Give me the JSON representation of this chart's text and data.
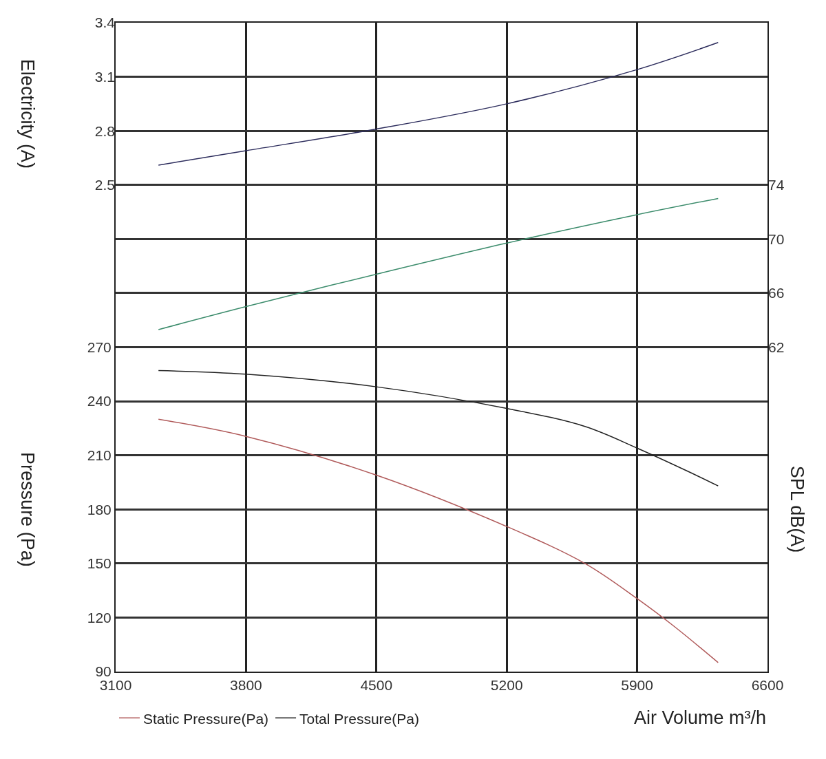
{
  "chart_data": {
    "type": "line",
    "xlabel": "Air Volume m³/h",
    "ylabel": "Pressure (Pa)",
    "y2label": "SPL dB(A)",
    "y3label": "Electricity (A)",
    "xlim": [
      3100,
      6600
    ],
    "xticks": [
      3100,
      3800,
      4500,
      5200,
      5900,
      6600
    ],
    "ylim": [
      90,
      450
    ],
    "yticks": [
      90,
      120,
      150,
      180,
      210,
      240,
      270
    ],
    "y2lim": [
      38,
      86
    ],
    "y2ticks": [
      62,
      66,
      70,
      74
    ],
    "y3lim": [
      -0.2,
      3.4
    ],
    "y3ticks": [
      2.5,
      2.8,
      3.1,
      3.4
    ],
    "grid": true,
    "legend": "bottom",
    "series": [
      {
        "name": "Static Pressure(Pa)",
        "color": "#b05a5a",
        "x": [
          3330,
          3800,
          4500,
          5200,
          5620,
          5900,
          6100,
          6335
        ],
        "values": [
          230,
          220.5,
          199,
          170.5,
          150,
          130.5,
          115,
          95
        ]
      },
      {
        "name": "Total Pressure(Pa)",
        "color": "#222222",
        "x": [
          3330,
          3800,
          4500,
          5200,
          5620,
          5900,
          6175,
          6335
        ],
        "values": [
          257,
          255,
          248,
          236,
          226,
          214,
          201,
          193
        ]
      },
      {
        "color": "#2c2c5c",
        "axis": "y3",
        "x": [
          3330,
          3800,
          4500,
          5200,
          5900,
          6335
        ],
        "values": [
          2.61,
          2.69,
          2.81,
          2.95,
          3.14,
          3.29
        ]
      },
      {
        "color": "#3c8c6c",
        "axis": "y2",
        "x": [
          3330,
          3800,
          4500,
          5200,
          5900,
          6335
        ],
        "values": [
          63.3,
          65.0,
          67.4,
          69.7,
          71.8,
          73.0
        ]
      }
    ]
  }
}
